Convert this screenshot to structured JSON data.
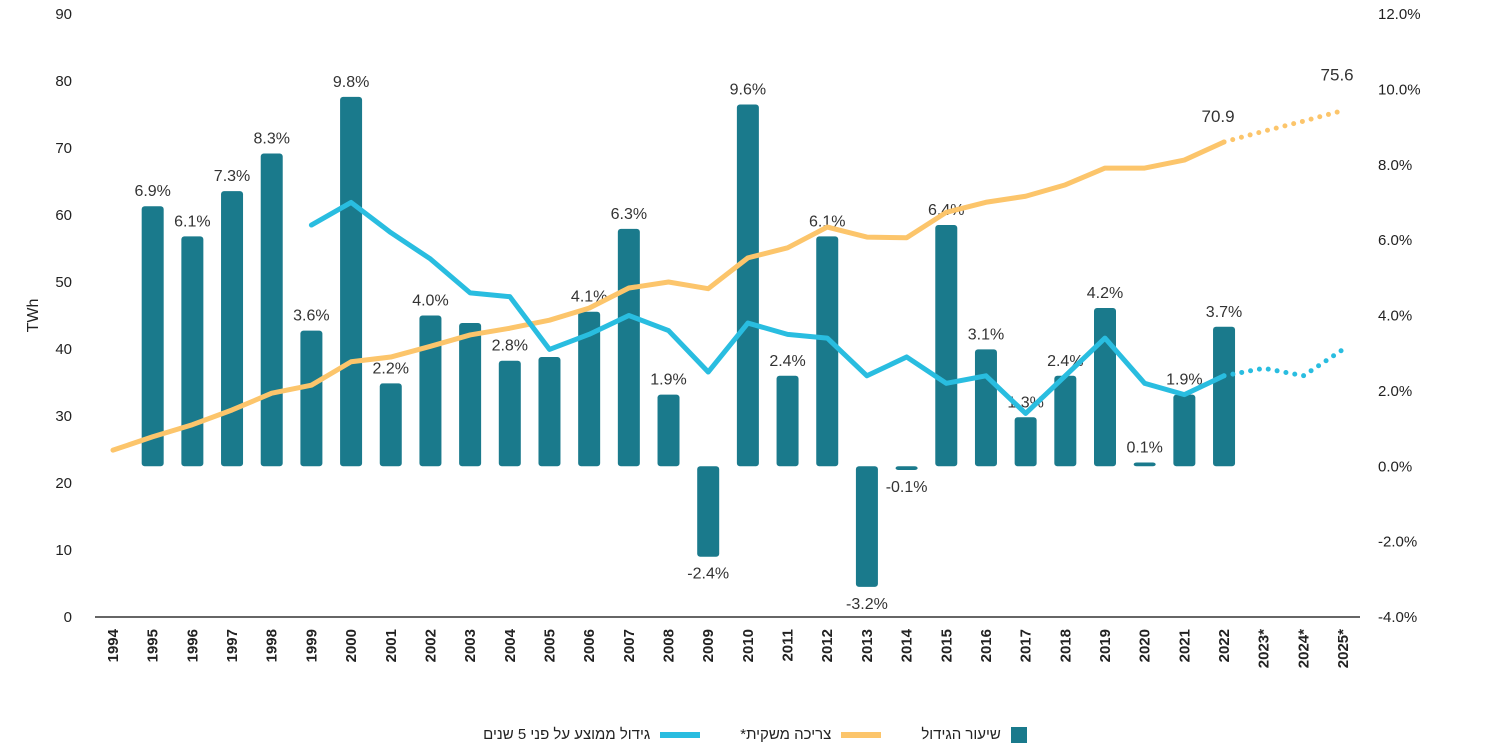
{
  "chart_data": {
    "type": "bar+line",
    "left_axis": {
      "label": "TWh",
      "range": [
        0,
        90
      ],
      "ticks": [
        0,
        10,
        20,
        30,
        40,
        50,
        60,
        70,
        80,
        90
      ]
    },
    "right_axis": {
      "range": [
        -4,
        12
      ],
      "ticks": [
        "-4.0%",
        "-2.0%",
        "0.0%",
        "2.0%",
        "4.0%",
        "6.0%",
        "8.0%",
        "10.0%",
        "12.0%"
      ]
    },
    "categories": [
      "1994",
      "1995",
      "1996",
      "1997",
      "1998",
      "1999",
      "2000",
      "2001",
      "2002",
      "2003",
      "2004",
      "2005",
      "2006",
      "2007",
      "2008",
      "2009",
      "2010",
      "2011",
      "2012",
      "2013",
      "2014",
      "2015",
      "2016",
      "2017",
      "2018",
      "2019",
      "2020",
      "2021",
      "2022",
      "2023*",
      "2024*",
      "2025*"
    ],
    "colors": {
      "bars": "#1a7a8c",
      "consumption": "#fcc56b",
      "avg5": "#29bde0"
    },
    "series": [
      {
        "name": "שיעור הגידול",
        "type": "bar",
        "axis": "right",
        "unit": "%",
        "values": [
          null,
          6.9,
          6.1,
          7.3,
          8.3,
          3.6,
          9.8,
          2.2,
          4.0,
          3.8,
          2.8,
          2.9,
          4.1,
          6.3,
          1.9,
          -2.4,
          9.6,
          2.4,
          6.1,
          -3.2,
          -0.1,
          6.4,
          3.1,
          1.3,
          2.4,
          4.2,
          0.1,
          1.9,
          3.7,
          null,
          null,
          null
        ],
        "labels": [
          null,
          "6.9%",
          "6.1%",
          "7.3%",
          "8.3%",
          "3.6%",
          "9.8%",
          "2.2%",
          "4.0%",
          null,
          "2.8%",
          null,
          "4.1%",
          "6.3%",
          "1.9%",
          "-2.4%",
          "9.6%",
          "2.4%",
          "6.1%",
          "-3.2%",
          "-0.1%",
          "6.4%",
          "3.1%",
          "1.3%",
          "2.4%",
          "4.2%",
          "0.1%",
          "1.9%",
          "3.7%",
          null,
          null,
          null
        ]
      },
      {
        "name": "צריכה משקית*",
        "type": "line",
        "axis": "left",
        "unit": "TWh",
        "dotted_from": "2022",
        "values": [
          24.9,
          26.9,
          28.7,
          30.9,
          33.4,
          34.6,
          38.1,
          38.8,
          40.4,
          42.1,
          43.1,
          44.3,
          46.1,
          49.1,
          50.0,
          49.0,
          53.6,
          55.1,
          58.2,
          56.7,
          56.6,
          60.4,
          61.9,
          62.8,
          64.5,
          67.0,
          67.0,
          68.2,
          70.9,
          72.5,
          74.0,
          75.6
        ],
        "point_labels": {
          "2022": "70.9",
          "2025*": "75.6"
        }
      },
      {
        "name": "גידול ממוצע על פני 5 שנים",
        "type": "line",
        "axis": "right",
        "unit": "%",
        "dotted_from": "2022",
        "values": [
          null,
          null,
          null,
          null,
          null,
          6.4,
          7.0,
          6.2,
          5.5,
          4.6,
          4.5,
          3.1,
          3.5,
          4.0,
          3.6,
          2.5,
          3.8,
          3.5,
          3.4,
          2.4,
          2.9,
          2.2,
          2.4,
          1.4,
          2.4,
          3.4,
          2.2,
          1.9,
          2.4,
          2.6,
          2.4,
          3.1
        ]
      }
    ],
    "legend_position": "bottom",
    "grid": false
  }
}
